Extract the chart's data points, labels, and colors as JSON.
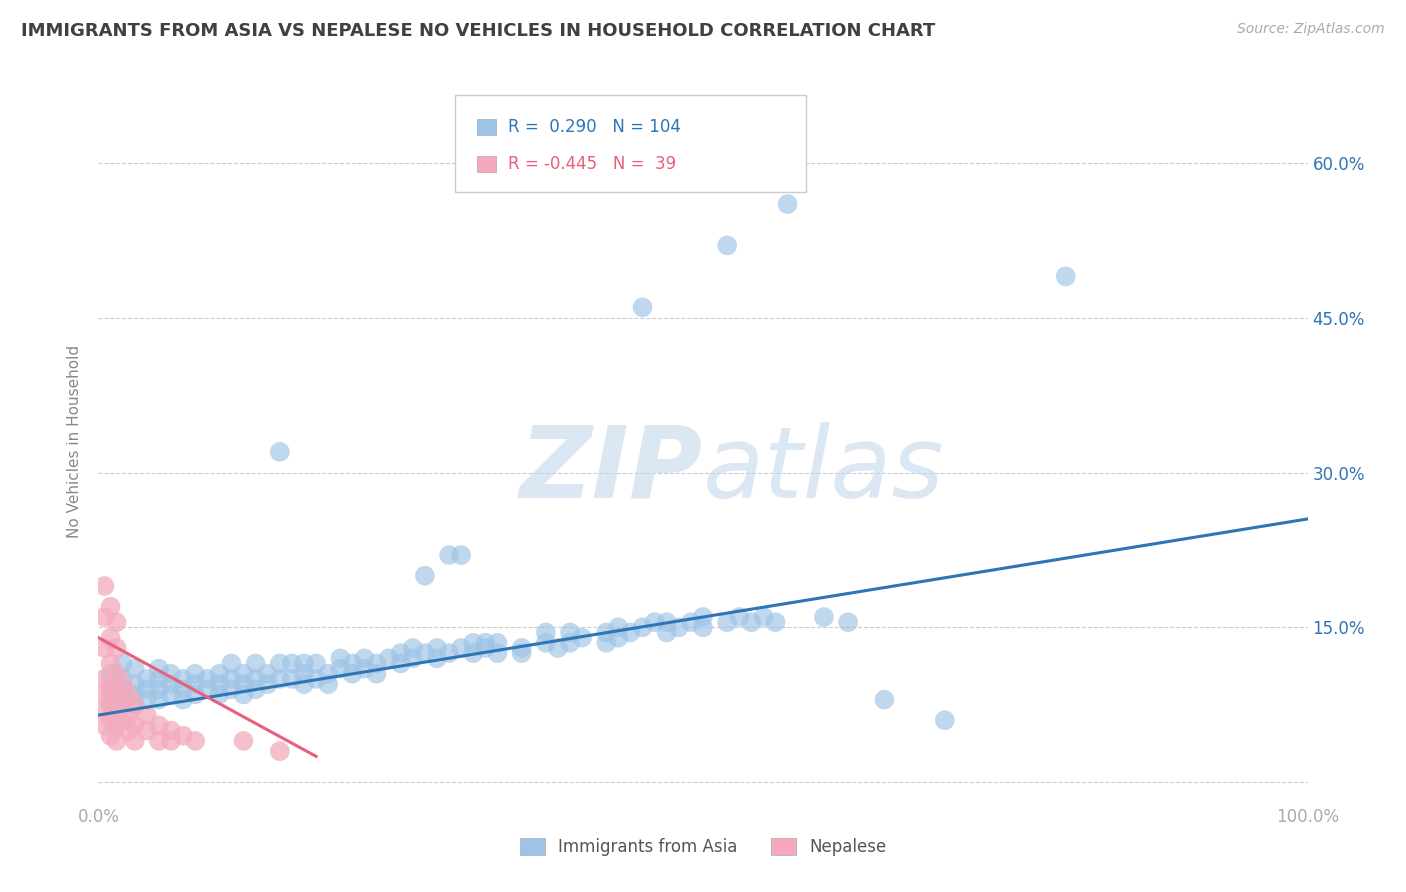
{
  "title": "IMMIGRANTS FROM ASIA VS NEPALESE NO VEHICLES IN HOUSEHOLD CORRELATION CHART",
  "source": "Source: ZipAtlas.com",
  "ylabel": "No Vehicles in Household",
  "xlim": [
    0.0,
    1.0
  ],
  "ylim": [
    -0.02,
    0.68
  ],
  "xticks": [
    0.0,
    0.2,
    0.4,
    0.6,
    0.8,
    1.0
  ],
  "xticklabels": [
    "0.0%",
    "",
    "",
    "",
    "",
    "100.0%"
  ],
  "yticks": [
    0.0,
    0.15,
    0.3,
    0.45,
    0.6
  ],
  "yticklabels_right": [
    "",
    "15.0%",
    "30.0%",
    "45.0%",
    "60.0%"
  ],
  "grid_color": "#cccccc",
  "background_color": "#ffffff",
  "watermark_zip": "ZIP",
  "watermark_atlas": "atlas",
  "blue_color": "#9DC3E6",
  "pink_color": "#F4AABC",
  "blue_line_color": "#2E75B6",
  "pink_line_color": "#E8607A",
  "title_color": "#404040",
  "axis_label_color": "#888888",
  "right_tick_color": "#2E75B6",
  "tick_label_color": "#aaaaaa",
  "blue_scatter": [
    [
      0.01,
      0.085
    ],
    [
      0.01,
      0.095
    ],
    [
      0.01,
      0.105
    ],
    [
      0.01,
      0.075
    ],
    [
      0.02,
      0.08
    ],
    [
      0.02,
      0.09
    ],
    [
      0.02,
      0.1
    ],
    [
      0.02,
      0.115
    ],
    [
      0.03,
      0.085
    ],
    [
      0.03,
      0.095
    ],
    [
      0.03,
      0.075
    ],
    [
      0.03,
      0.11
    ],
    [
      0.04,
      0.09
    ],
    [
      0.04,
      0.1
    ],
    [
      0.04,
      0.08
    ],
    [
      0.05,
      0.1
    ],
    [
      0.05,
      0.09
    ],
    [
      0.05,
      0.08
    ],
    [
      0.05,
      0.11
    ],
    [
      0.06,
      0.095
    ],
    [
      0.06,
      0.085
    ],
    [
      0.06,
      0.105
    ],
    [
      0.07,
      0.09
    ],
    [
      0.07,
      0.1
    ],
    [
      0.07,
      0.08
    ],
    [
      0.08,
      0.095
    ],
    [
      0.08,
      0.085
    ],
    [
      0.08,
      0.105
    ],
    [
      0.09,
      0.1
    ],
    [
      0.09,
      0.09
    ],
    [
      0.1,
      0.095
    ],
    [
      0.1,
      0.105
    ],
    [
      0.1,
      0.085
    ],
    [
      0.11,
      0.1
    ],
    [
      0.11,
      0.09
    ],
    [
      0.11,
      0.115
    ],
    [
      0.12,
      0.095
    ],
    [
      0.12,
      0.105
    ],
    [
      0.12,
      0.085
    ],
    [
      0.13,
      0.1
    ],
    [
      0.13,
      0.09
    ],
    [
      0.13,
      0.115
    ],
    [
      0.14,
      0.105
    ],
    [
      0.14,
      0.095
    ],
    [
      0.15,
      0.1
    ],
    [
      0.15,
      0.115
    ],
    [
      0.15,
      0.32
    ],
    [
      0.16,
      0.1
    ],
    [
      0.16,
      0.115
    ],
    [
      0.17,
      0.105
    ],
    [
      0.17,
      0.095
    ],
    [
      0.17,
      0.115
    ],
    [
      0.18,
      0.1
    ],
    [
      0.18,
      0.115
    ],
    [
      0.19,
      0.105
    ],
    [
      0.19,
      0.095
    ],
    [
      0.2,
      0.11
    ],
    [
      0.2,
      0.12
    ],
    [
      0.21,
      0.115
    ],
    [
      0.21,
      0.105
    ],
    [
      0.22,
      0.12
    ],
    [
      0.22,
      0.11
    ],
    [
      0.23,
      0.115
    ],
    [
      0.23,
      0.105
    ],
    [
      0.24,
      0.12
    ],
    [
      0.25,
      0.125
    ],
    [
      0.25,
      0.115
    ],
    [
      0.26,
      0.13
    ],
    [
      0.26,
      0.12
    ],
    [
      0.27,
      0.125
    ],
    [
      0.27,
      0.2
    ],
    [
      0.28,
      0.13
    ],
    [
      0.28,
      0.12
    ],
    [
      0.29,
      0.125
    ],
    [
      0.29,
      0.22
    ],
    [
      0.3,
      0.13
    ],
    [
      0.3,
      0.22
    ],
    [
      0.31,
      0.135
    ],
    [
      0.31,
      0.125
    ],
    [
      0.32,
      0.13
    ],
    [
      0.32,
      0.135
    ],
    [
      0.33,
      0.135
    ],
    [
      0.33,
      0.125
    ],
    [
      0.35,
      0.13
    ],
    [
      0.35,
      0.125
    ],
    [
      0.37,
      0.135
    ],
    [
      0.37,
      0.145
    ],
    [
      0.38,
      0.13
    ],
    [
      0.39,
      0.135
    ],
    [
      0.39,
      0.145
    ],
    [
      0.4,
      0.14
    ],
    [
      0.42,
      0.145
    ],
    [
      0.42,
      0.135
    ],
    [
      0.43,
      0.15
    ],
    [
      0.43,
      0.14
    ],
    [
      0.44,
      0.145
    ],
    [
      0.45,
      0.15
    ],
    [
      0.45,
      0.46
    ],
    [
      0.46,
      0.155
    ],
    [
      0.47,
      0.155
    ],
    [
      0.47,
      0.145
    ],
    [
      0.48,
      0.15
    ],
    [
      0.49,
      0.155
    ],
    [
      0.5,
      0.16
    ],
    [
      0.5,
      0.15
    ],
    [
      0.52,
      0.155
    ],
    [
      0.52,
      0.52
    ],
    [
      0.53,
      0.16
    ],
    [
      0.54,
      0.155
    ],
    [
      0.55,
      0.16
    ],
    [
      0.56,
      0.155
    ],
    [
      0.57,
      0.56
    ],
    [
      0.6,
      0.16
    ],
    [
      0.62,
      0.155
    ],
    [
      0.65,
      0.08
    ],
    [
      0.7,
      0.06
    ],
    [
      0.8,
      0.49
    ]
  ],
  "pink_scatter": [
    [
      0.005,
      0.19
    ],
    [
      0.005,
      0.16
    ],
    [
      0.005,
      0.13
    ],
    [
      0.005,
      0.1
    ],
    [
      0.005,
      0.085
    ],
    [
      0.005,
      0.07
    ],
    [
      0.005,
      0.055
    ],
    [
      0.01,
      0.17
    ],
    [
      0.01,
      0.14
    ],
    [
      0.01,
      0.115
    ],
    [
      0.01,
      0.09
    ],
    [
      0.01,
      0.075
    ],
    [
      0.01,
      0.06
    ],
    [
      0.01,
      0.045
    ],
    [
      0.015,
      0.155
    ],
    [
      0.015,
      0.13
    ],
    [
      0.015,
      0.105
    ],
    [
      0.015,
      0.085
    ],
    [
      0.015,
      0.07
    ],
    [
      0.015,
      0.055
    ],
    [
      0.015,
      0.04
    ],
    [
      0.02,
      0.095
    ],
    [
      0.02,
      0.075
    ],
    [
      0.02,
      0.06
    ],
    [
      0.025,
      0.085
    ],
    [
      0.025,
      0.065
    ],
    [
      0.025,
      0.05
    ],
    [
      0.03,
      0.075
    ],
    [
      0.03,
      0.055
    ],
    [
      0.03,
      0.04
    ],
    [
      0.04,
      0.065
    ],
    [
      0.04,
      0.05
    ],
    [
      0.05,
      0.055
    ],
    [
      0.05,
      0.04
    ],
    [
      0.06,
      0.05
    ],
    [
      0.06,
      0.04
    ],
    [
      0.07,
      0.045
    ],
    [
      0.08,
      0.04
    ],
    [
      0.12,
      0.04
    ],
    [
      0.15,
      0.03
    ]
  ],
  "blue_line_x": [
    0.0,
    1.0
  ],
  "blue_line_y": [
    0.065,
    0.255
  ],
  "pink_line_x": [
    0.0,
    0.18
  ],
  "pink_line_y": [
    0.14,
    0.025
  ]
}
